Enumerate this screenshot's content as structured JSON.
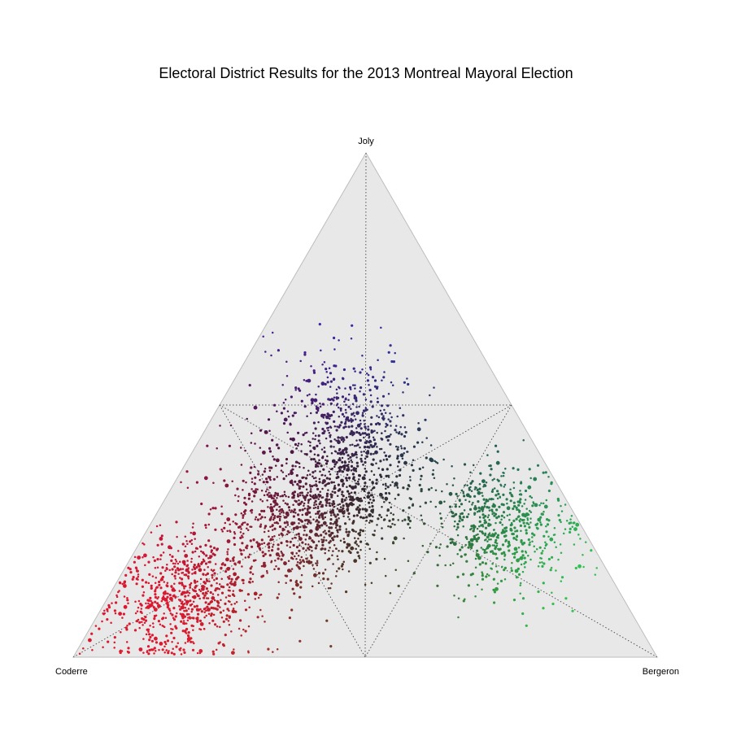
{
  "chart_data": {
    "type": "scatter",
    "subtype": "ternary",
    "title": "Electoral District Results for the 2013 Montreal Mayoral Election",
    "components": [
      "Joly",
      "Coderre",
      "Bergeron"
    ],
    "vertex_labels": {
      "top": "Joly",
      "bottom_left": "Coderre",
      "bottom_right": "Bergeron"
    },
    "grid": true,
    "guide_lines": "dotted lines marking the plurality regions (each share = 1/2 and equal-share boundaries)",
    "colors": {
      "background": "#e8e8e8",
      "border": "#bdbdbd",
      "guide": "#555555",
      "Joly": "#3a2bd0",
      "Coderre": "#d4162c",
      "Bergeron": "#2fbf4a"
    },
    "point_color_rule": "mix of component colors weighted by vote share",
    "n_points_shown": 3000,
    "clusters": [
      {
        "region": "Coderre-leading",
        "center": {
          "Joly": 0.12,
          "Coderre": 0.75,
          "Bergeron": 0.13
        },
        "spread": 0.07
      },
      {
        "region": "Coderre/Joly",
        "center": {
          "Joly": 0.27,
          "Coderre": 0.5,
          "Bergeron": 0.23
        },
        "spread": 0.09
      },
      {
        "region": "centre",
        "center": {
          "Joly": 0.33,
          "Coderre": 0.36,
          "Bergeron": 0.31
        },
        "spread": 0.09
      },
      {
        "region": "Joly-leading",
        "center": {
          "Joly": 0.47,
          "Coderre": 0.3,
          "Bergeron": 0.23
        },
        "spread": 0.08
      },
      {
        "region": "Bergeron-leading",
        "center": {
          "Joly": 0.26,
          "Coderre": 0.14,
          "Bergeron": 0.6
        },
        "spread": 0.07
      }
    ]
  }
}
